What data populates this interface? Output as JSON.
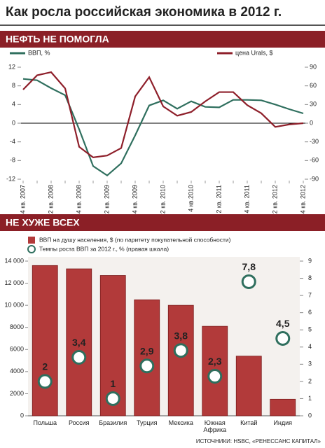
{
  "title": "Как росла российская экономика в 2012 г.",
  "source": "ИСТОЧНИКИ: HSBC, «РЕНЕССАНС КАПИТАЛ»",
  "chart_data": [
    {
      "type": "line",
      "title": "НЕФТЬ НЕ ПОМОГЛА",
      "categories": [
        "4 кв. 2007",
        null,
        "2 кв. 2008",
        null,
        "4 кв. 2008",
        null,
        "2 кв. 2009",
        null,
        "4 кв. 2009",
        null,
        "2 кв. 2010",
        null,
        "4 кв.2010",
        null,
        "2 кв. 2011",
        null,
        "4 кв. 2011",
        null,
        "2 кв. 2012",
        null,
        "4 кв. 2012"
      ],
      "series": [
        {
          "name": "ВВП, %",
          "color": "#2f6f5e",
          "values": [
            9.5,
            9.2,
            7.5,
            6.0,
            -1.3,
            -9.2,
            -11.2,
            -8.6,
            -2.6,
            3.8,
            4.9,
            3.1,
            4.7,
            3.5,
            3.4,
            5.0,
            5.0,
            4.9,
            4.0,
            3.0,
            2.1
          ]
        },
        {
          "name": "цена Urals, $",
          "color": "#8e1f2a",
          "axis": "y2",
          "values": [
            54,
            77,
            82,
            56,
            -38,
            -55,
            -52,
            -40,
            43,
            74,
            27,
            12,
            18,
            35,
            50,
            50,
            29,
            16,
            -6,
            -2,
            0
          ]
        }
      ],
      "ylim": [
        -12,
        12
      ],
      "yticks": [
        -12,
        -8,
        -4,
        0,
        4,
        8,
        12
      ],
      "y2lim": [
        -90,
        90
      ],
      "y2ticks": [
        -90,
        -60,
        -30,
        0,
        30,
        60,
        90
      ]
    },
    {
      "type": "bar",
      "title": "НЕ ХУЖЕ ВСЕХ",
      "categories": [
        "Польша",
        "Россия",
        "Бразилия",
        "Турция",
        "Мексика",
        "Южная Африка",
        "Китай",
        "Индия"
      ],
      "series": [
        {
          "name": "ВВП на душу населения, $ (по паритету покупательной способности)",
          "type": "bar",
          "color": "#b23a3a",
          "values": [
            13600,
            13300,
            12700,
            10500,
            10000,
            8100,
            5400,
            1500
          ]
        },
        {
          "name": "Темпы роста ВВП за 2012 г., % (правая шкала)",
          "type": "scatter",
          "color": "#2f6f5e",
          "axis": "y2",
          "values": [
            2,
            3.4,
            1,
            2.9,
            3.8,
            2.3,
            7.8,
            4.5
          ],
          "value_labels": [
            "2",
            "3,4",
            "1",
            "2,9",
            "3,8",
            "2,3",
            "7,8",
            "4,5"
          ]
        }
      ],
      "ylim": [
        0,
        14000
      ],
      "yticks": [
        0,
        2000,
        4000,
        6000,
        8000,
        {
          "value": 10000,
          "label": "10 000"
        },
        {
          "value": 12000,
          "label": "12 000"
        },
        {
          "value": 14000,
          "label": "14 000"
        }
      ],
      "y2lim": [
        0,
        9
      ],
      "y2ticks": [
        0,
        1,
        2,
        3,
        4,
        5,
        6,
        7,
        8,
        9
      ]
    }
  ]
}
